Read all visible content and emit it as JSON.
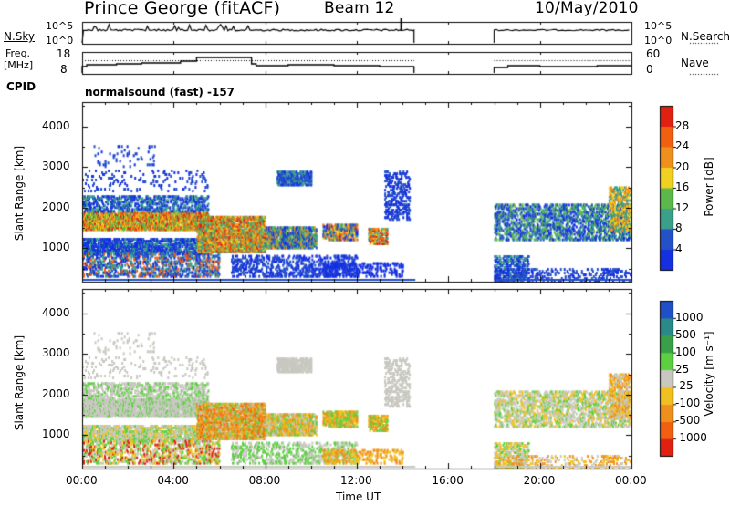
{
  "header": {
    "station": "Prince George (fitACF)",
    "beam": "Beam 12",
    "date": "10/May/2010"
  },
  "top_panels": {
    "nsky_label": "N.Sky",
    "nsearch_label": "N.Search",
    "count_top_tick": "10^5",
    "count_bottom_tick": "10^0",
    "freq_label_line1": "Freq.",
    "freq_label_line2": "[MHz]",
    "freq_ticks": [
      "18",
      "8"
    ],
    "nave_label": "Nave",
    "nave_ticks": [
      "60",
      "0"
    ],
    "cpid_label": "CPID",
    "cpid_value": "normalsound (fast) -157"
  },
  "x_axis": {
    "label": "Time UT",
    "ticks": [
      "00:00",
      "04:00",
      "08:00",
      "12:00",
      "16:00",
      "20:00",
      "00:00"
    ]
  },
  "chart_data": [
    {
      "type": "heatmap",
      "title": "",
      "xlabel": "Time UT",
      "ylabel": "Slant Range [km]",
      "xlim_hours": [
        0,
        24
      ],
      "ylim_km": [
        180,
        4600
      ],
      "yticks": [
        "1000",
        "2000",
        "3000",
        "4000"
      ],
      "colorbar": {
        "label": "Power [dB]",
        "ticks": [
          "4",
          "8",
          "12",
          "16",
          "20",
          "24",
          "28"
        ],
        "colors": [
          "#1430e0",
          "#2450c8",
          "#3aa08a",
          "#5cb84a",
          "#f0d020",
          "#f0901c",
          "#f06010",
          "#e02010"
        ]
      },
      "data_gap_hours": [
        14.5,
        18.0
      ]
    },
    {
      "type": "heatmap",
      "title": "",
      "xlabel": "Time UT",
      "ylabel": "Slant Range [km]",
      "xlim_hours": [
        0,
        24
      ],
      "ylim_km": [
        180,
        4600
      ],
      "yticks": [
        "1000",
        "2000",
        "3000",
        "4000"
      ],
      "colorbar": {
        "label": "Velocity [m s⁻¹]",
        "ticks": [
          "1000",
          "500",
          "100",
          "25",
          "-25",
          "-100",
          "-500",
          "-1000"
        ],
        "colors": [
          "#2050c8",
          "#2a8a8a",
          "#3aa048",
          "#5cd040",
          "#c8c8c0",
          "#f0c020",
          "#f0901c",
          "#f06010",
          "#e02010"
        ]
      },
      "data_gap_hours": [
        14.5,
        18.0
      ]
    }
  ]
}
